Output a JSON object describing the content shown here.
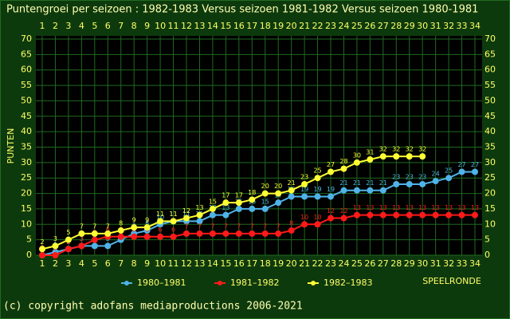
{
  "chart_data": {
    "type": "line",
    "title": "Puntengroei per seizoen : 1982-1983 Versus seizoen 1981-1982 Versus seizoen 1980-1981",
    "y_label": "PUNTEN",
    "x_label": "SPEELRONDE",
    "footer": "(c) copyright adofans mediaproductions 2006-2021",
    "x": [
      1,
      2,
      3,
      4,
      5,
      6,
      7,
      8,
      9,
      10,
      11,
      12,
      13,
      14,
      15,
      16,
      17,
      18,
      19,
      20,
      21,
      22,
      23,
      24,
      25,
      26,
      27,
      28,
      29,
      30,
      31,
      32,
      33,
      34
    ],
    "xlim": [
      1,
      34
    ],
    "ylim": [
      0,
      70
    ],
    "yticks": [
      0,
      5,
      10,
      15,
      20,
      25,
      30,
      35,
      40,
      45,
      50,
      55,
      60,
      65,
      70
    ],
    "grid": true,
    "series": [
      {
        "name": "1980–1981",
        "color": "#4fb3e8",
        "values": [
          0,
          1,
          2,
          3,
          3,
          3,
          5,
          7,
          8,
          10,
          11,
          11,
          11,
          13,
          13,
          15,
          15,
          15,
          17,
          19,
          19,
          19,
          19,
          21,
          21,
          21,
          21,
          23,
          23,
          23,
          24,
          25,
          27,
          27
        ]
      },
      {
        "name": "1981–1982",
        "color": "#ff1a1a",
        "values": [
          0,
          0,
          2,
          3,
          5,
          6,
          6,
          6,
          6,
          6,
          6,
          7,
          7,
          7,
          7,
          7,
          7,
          7,
          7,
          8,
          10,
          10,
          12,
          12,
          13,
          13,
          13,
          13,
          13,
          13,
          13,
          13,
          13,
          13
        ]
      },
      {
        "name": "1982–1983",
        "color": "#ffff33",
        "values": [
          2,
          3,
          5,
          7,
          7,
          7,
          8,
          9,
          9,
          11,
          11,
          12,
          13,
          15,
          17,
          17,
          18,
          20,
          20,
          21,
          23,
          25,
          27,
          28,
          30,
          31,
          32,
          32,
          32,
          32,
          null,
          null,
          null,
          null
        ]
      }
    ]
  }
}
